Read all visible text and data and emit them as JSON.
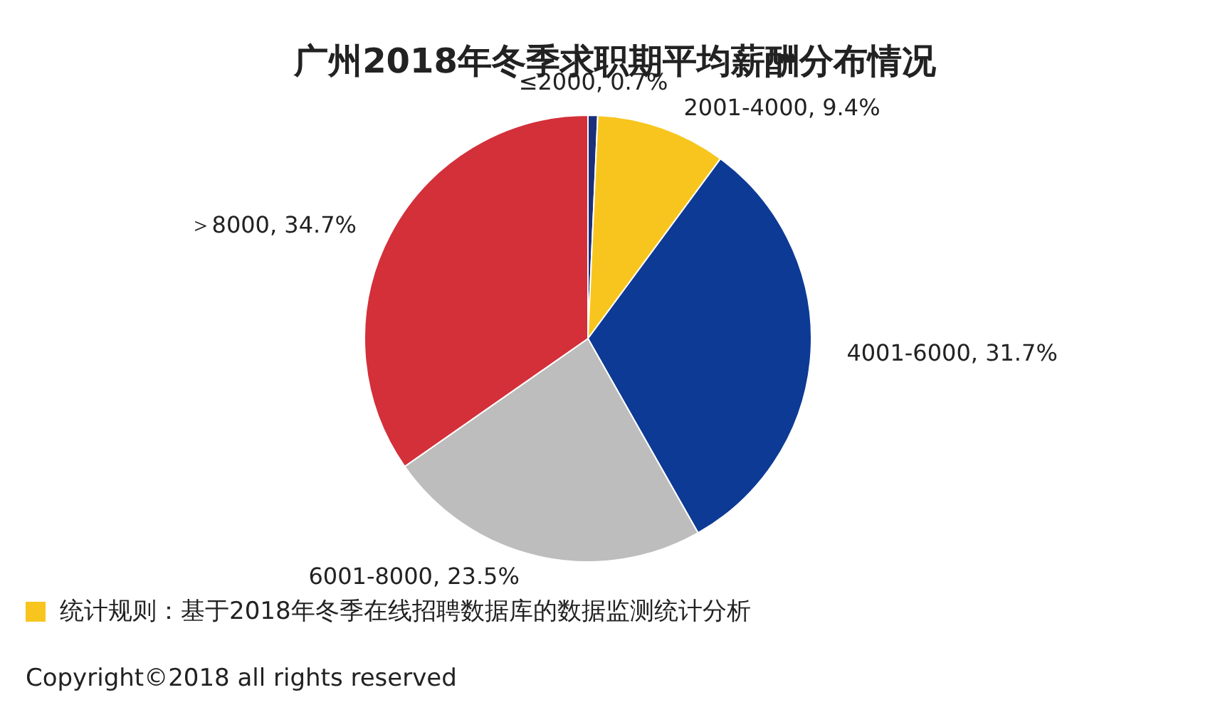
{
  "chart_data": {
    "type": "pie",
    "title": "广州2018年冬季求职期平均薪酬分布情况",
    "categories": [
      "≤2000",
      "2001-4000",
      "4001-6000",
      "6001-8000",
      "＞8000"
    ],
    "values": [
      0.7,
      9.4,
      31.7,
      23.5,
      34.7
    ],
    "colors": [
      "#1b2f7a",
      "#f7c51e",
      "#0d3a95",
      "#bdbdbd",
      "#d3303a"
    ],
    "value_labels": [
      "0.7%",
      "9.4%",
      "31.7%",
      "23.5%",
      "34.7%"
    ],
    "legend": false,
    "annotations": [
      "统计规则：基于2018年冬季在线招聘数据库的数据监测统计分析",
      "Copyright©2018 all rights reserved"
    ]
  }
}
